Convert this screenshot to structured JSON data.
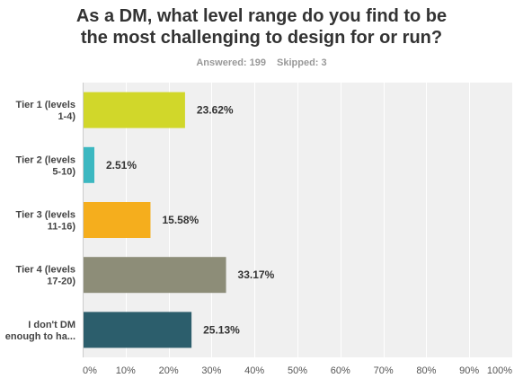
{
  "question": {
    "title_line1": "As a DM, what level range do you find to be",
    "title_line2": "the most challenging to design for or run?"
  },
  "stats": {
    "answered_label": "Answered: 199",
    "skipped_label": "Skipped: 3"
  },
  "chart_data": {
    "type": "bar",
    "orientation": "horizontal",
    "categories": [
      [
        "Tier 1 (levels",
        "1-4)"
      ],
      [
        "Tier 2 (levels",
        "5-10)"
      ],
      [
        "Tier 3 (levels",
        "11-16)"
      ],
      [
        "Tier 4 (levels",
        "17-20)"
      ],
      [
        "I don't DM",
        "enough to ha..."
      ]
    ],
    "values": [
      23.62,
      2.51,
      15.58,
      33.17,
      25.13
    ],
    "value_labels": [
      "23.62%",
      "2.51%",
      "15.58%",
      "33.17%",
      "25.13%"
    ],
    "colors": [
      "#d1d72a",
      "#3cb8c1",
      "#f5ae1d",
      "#8d8d78",
      "#2c5e6c"
    ],
    "xlim": [
      0,
      100
    ],
    "xticks": [
      0,
      10,
      20,
      30,
      40,
      50,
      60,
      70,
      80,
      90,
      100
    ],
    "xtick_labels": [
      "0%",
      "10%",
      "20%",
      "30%",
      "40%",
      "50%",
      "60%",
      "70%",
      "80%",
      "90%",
      "100%"
    ],
    "grid": true,
    "plot_background": "#f0f0f0"
  }
}
